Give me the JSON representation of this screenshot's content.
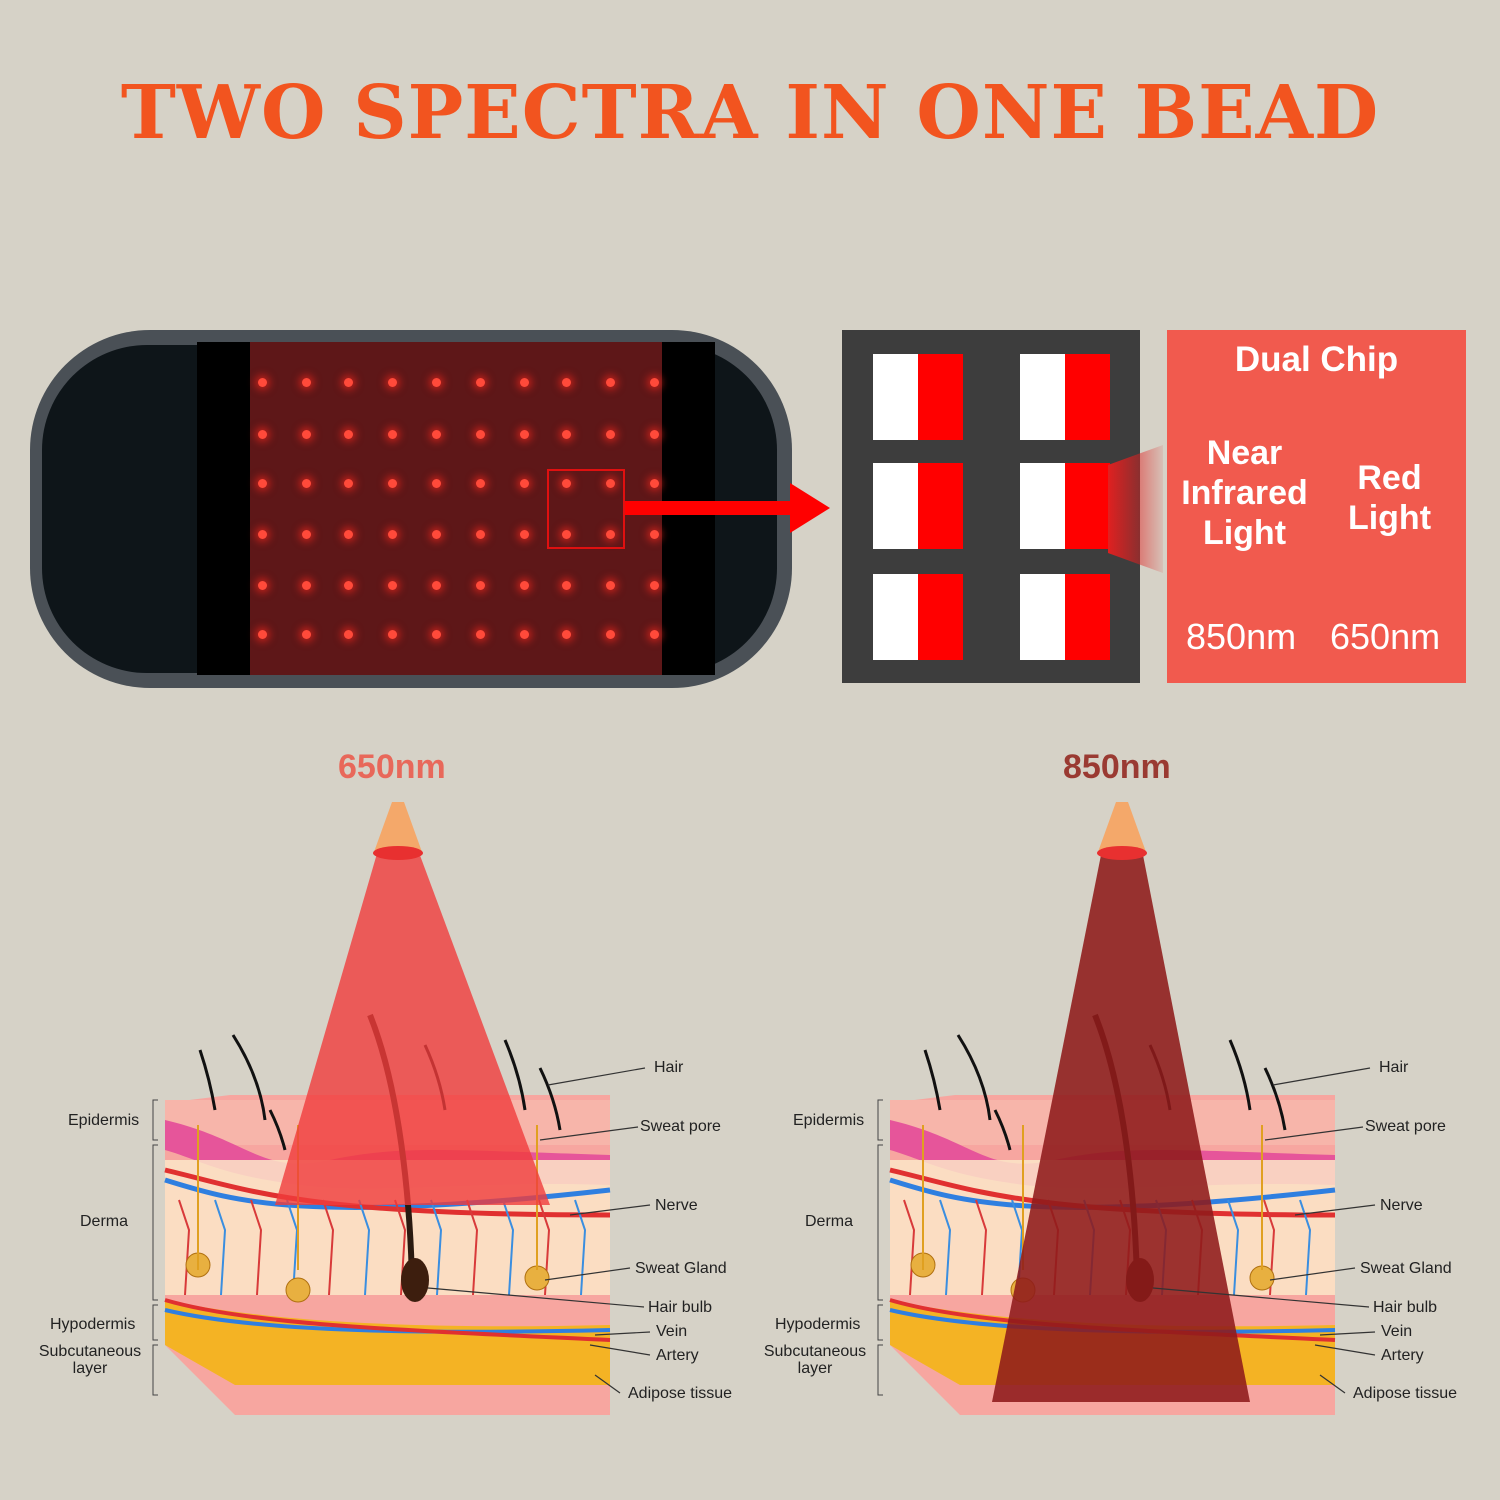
{
  "title": "TWO SPECTRA IN ONE BEAD",
  "colors": {
    "background": "#d6d2c7",
    "title": "#f2541f",
    "red_650": "#f04848",
    "nir_850": "#8e1a1a",
    "info_box": "#f15a4e",
    "chip_box": "#3d3d3d"
  },
  "info": {
    "heading": "Dual Chip",
    "nir_label": "Near Infrared Light",
    "nir_label_lines": [
      "Near",
      "Infrared",
      "Light"
    ],
    "red_label_lines": [
      "Red",
      "Light"
    ],
    "nir_wavelength": "850nm",
    "red_wavelength": "650nm"
  },
  "diagrams": [
    {
      "wavelength": "650nm",
      "color": "#e8685a"
    },
    {
      "wavelength": "850nm",
      "color": "#9a3a32"
    }
  ],
  "skin_labels": {
    "left": [
      "Epidermis",
      "Derma",
      "Hypodermis",
      "Subcutaneous layer"
    ],
    "right": [
      "Hair",
      "Sweat pore",
      "Nerve",
      "Sweat Gland",
      "Hair bulb",
      "Vein",
      "Artery",
      "Adipose tissue"
    ]
  }
}
